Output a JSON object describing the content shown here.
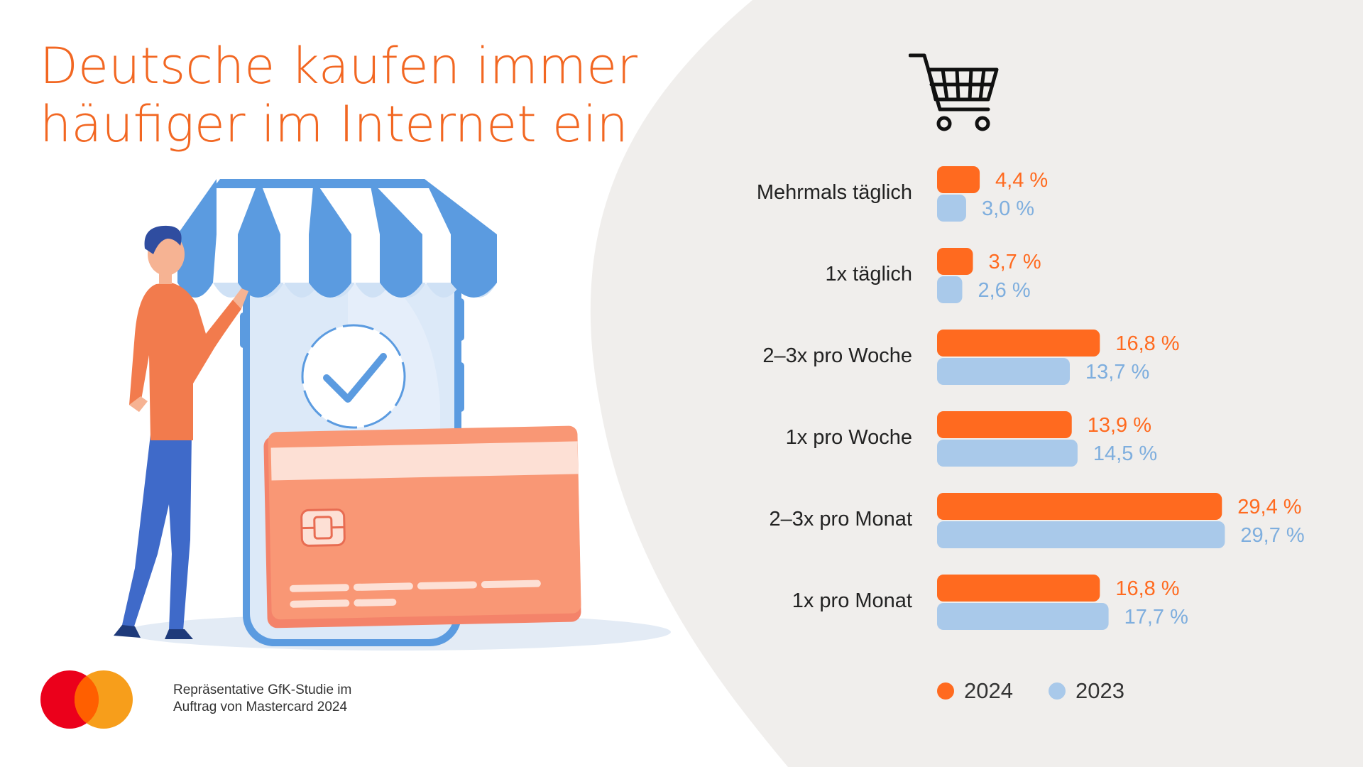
{
  "title": {
    "line1": "Deutsche kaufen immer",
    "line2": "häufiger im Internet ein"
  },
  "colors": {
    "accent": "#f26722",
    "series_2024": "#ff6a1f",
    "series_2023": "#a9c9ea",
    "label_2023": "#7eaede",
    "right_panel": "#f0eeec",
    "card": "#f99775",
    "awning_blue": "#5b9be0"
  },
  "icons": {
    "cart": "shopping-cart-icon",
    "check": "checkmark-icon",
    "chip": "card-chip-icon",
    "logo": "mastercard-logo"
  },
  "chart_data": {
    "type": "bar",
    "orientation": "horizontal",
    "categories": [
      "Mehrmals täglich",
      "1x täglich",
      "2–3x pro Woche",
      "1x pro Woche",
      "2–3x pro Monat",
      "1x pro Monat"
    ],
    "series": [
      {
        "name": "2024",
        "values": [
          4.4,
          3.7,
          16.8,
          13.9,
          29.4,
          16.8
        ],
        "labels": [
          "4,4 %",
          "3,7 %",
          "16,8 %",
          "13,9 %",
          "29,4 %",
          "16,8 %"
        ]
      },
      {
        "name": "2023",
        "values": [
          3.0,
          2.6,
          13.7,
          14.5,
          29.7,
          17.7
        ],
        "labels": [
          "3,0 %",
          "2,6 %",
          "13,7 %",
          "14,5 %",
          "29,7 %",
          "17,7 %"
        ]
      }
    ],
    "unit": "%",
    "xlim": [
      0,
      30
    ],
    "legend": [
      "2024",
      "2023"
    ],
    "legend_position": "bottom",
    "grid": false
  },
  "footer": {
    "line1": "Repräsentative GfK-Studie im",
    "line2": "Auftrag von Mastercard 2024"
  }
}
